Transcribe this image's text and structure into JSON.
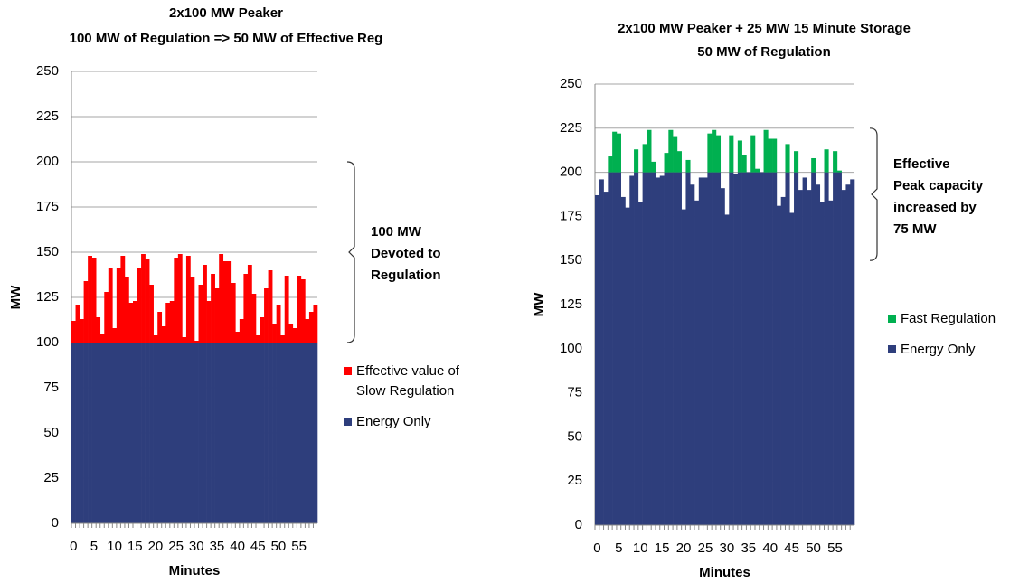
{
  "chart_data": [
    {
      "type": "stacked_bar",
      "title": [
        "2x100 MW Peaker",
        "100 MW of Regulation => 50 MW of Effective Reg"
      ],
      "xlabel": "Minutes",
      "ylabel": "MW",
      "categories": [
        "0",
        null,
        null,
        null,
        null,
        "5",
        null,
        null,
        null,
        null,
        "10",
        null,
        null,
        null,
        null,
        "15",
        null,
        null,
        null,
        null,
        "20",
        null,
        null,
        null,
        null,
        "25",
        null,
        null,
        null,
        null,
        "30",
        null,
        null,
        null,
        null,
        "35",
        null,
        null,
        null,
        null,
        "40",
        null,
        null,
        null,
        null,
        "45",
        null,
        null,
        null,
        null,
        "50",
        null,
        null,
        null,
        null,
        "55",
        null,
        null,
        null,
        null
      ],
      "series": [
        {
          "name": "Energy Only",
          "color": "#2e3e7c",
          "values": [
            100,
            100,
            100,
            100,
            100,
            100,
            100,
            100,
            100,
            100,
            100,
            100,
            100,
            100,
            100,
            100,
            100,
            100,
            100,
            100,
            100,
            100,
            100,
            100,
            100,
            100,
            100,
            100,
            100,
            100,
            100,
            100,
            100,
            100,
            100,
            100,
            100,
            100,
            100,
            100,
            100,
            100,
            100,
            100,
            100,
            100,
            100,
            100,
            100,
            100,
            100,
            100,
            100,
            100,
            100,
            100,
            100,
            100,
            100,
            100
          ]
        },
        {
          "name": "Effective value of Slow Regulation",
          "color": "#ff0000",
          "values": [
            12,
            21,
            13,
            34,
            48,
            47,
            14,
            5,
            28,
            41,
            8,
            41,
            48,
            36,
            22,
            23,
            41,
            49,
            46,
            32,
            4,
            17,
            9,
            22,
            23,
            47,
            49,
            3,
            48,
            36,
            1,
            32,
            43,
            23,
            38,
            30,
            49,
            45,
            45,
            33,
            6,
            13,
            38,
            43,
            27,
            4,
            14,
            30,
            40,
            10,
            21,
            4,
            37,
            10,
            8,
            37,
            35,
            13,
            17,
            21
          ]
        }
      ],
      "ylim": [
        0,
        250
      ],
      "yticks": [
        0,
        25,
        50,
        75,
        100,
        125,
        150,
        175,
        200,
        225,
        250
      ],
      "grid": true,
      "annotation": {
        "lines": [
          "100 MW",
          "Devoted to",
          "Regulation"
        ],
        "span": [
          100,
          200
        ]
      }
    },
    {
      "type": "stacked_bar",
      "title": [
        "2x100 MW Peaker + 25 MW 15 Minute Storage",
        "50 MW of Regulation"
      ],
      "xlabel": "Minutes",
      "ylabel": "MW",
      "categories": [
        "0",
        null,
        null,
        null,
        null,
        "5",
        null,
        null,
        null,
        null,
        "10",
        null,
        null,
        null,
        null,
        "15",
        null,
        null,
        null,
        null,
        "20",
        null,
        null,
        null,
        null,
        "25",
        null,
        null,
        null,
        null,
        "30",
        null,
        null,
        null,
        null,
        "35",
        null,
        null,
        null,
        null,
        "40",
        null,
        null,
        null,
        null,
        "45",
        null,
        null,
        null,
        null,
        "50",
        null,
        null,
        null,
        null,
        "55",
        null,
        null,
        null,
        null
      ],
      "series": [
        {
          "name": "Energy Only",
          "color": "#2e3e7c",
          "values": [
            187,
            196,
            189,
            200,
            200,
            200,
            186,
            180,
            198,
            200,
            183,
            200,
            200,
            200,
            197,
            198,
            200,
            200,
            200,
            200,
            179,
            200,
            193,
            184,
            197,
            197,
            200,
            200,
            200,
            191,
            176,
            200,
            199,
            200,
            200,
            200,
            200,
            200,
            200,
            200,
            200,
            200,
            181,
            186,
            200,
            177,
            200,
            190,
            197,
            190,
            200,
            193,
            183,
            200,
            184,
            200,
            200,
            190,
            193,
            196
          ]
        },
        {
          "name": "Fast Regulation",
          "color": "#00b050",
          "values": [
            0,
            0,
            0,
            9,
            23,
            22,
            0,
            0,
            0,
            13,
            0,
            16,
            24,
            6,
            0,
            0,
            11,
            24,
            20,
            12,
            0,
            7,
            0,
            0,
            0,
            0,
            22,
            24,
            21,
            0,
            0,
            21,
            0,
            18,
            10,
            0,
            21,
            2,
            0,
            24,
            19,
            19,
            0,
            0,
            16,
            0,
            12,
            0,
            0,
            0,
            8,
            0,
            0,
            13,
            0,
            12,
            1,
            0,
            0,
            0
          ]
        }
      ],
      "ylim": [
        0,
        250
      ],
      "yticks": [
        0,
        25,
        50,
        75,
        100,
        125,
        150,
        175,
        200,
        225,
        250
      ],
      "grid": true,
      "annotation": {
        "lines": [
          "Effective",
          "Peak capacity",
          "increased by",
          "75 MW"
        ],
        "span": [
          150,
          225
        ]
      }
    }
  ]
}
